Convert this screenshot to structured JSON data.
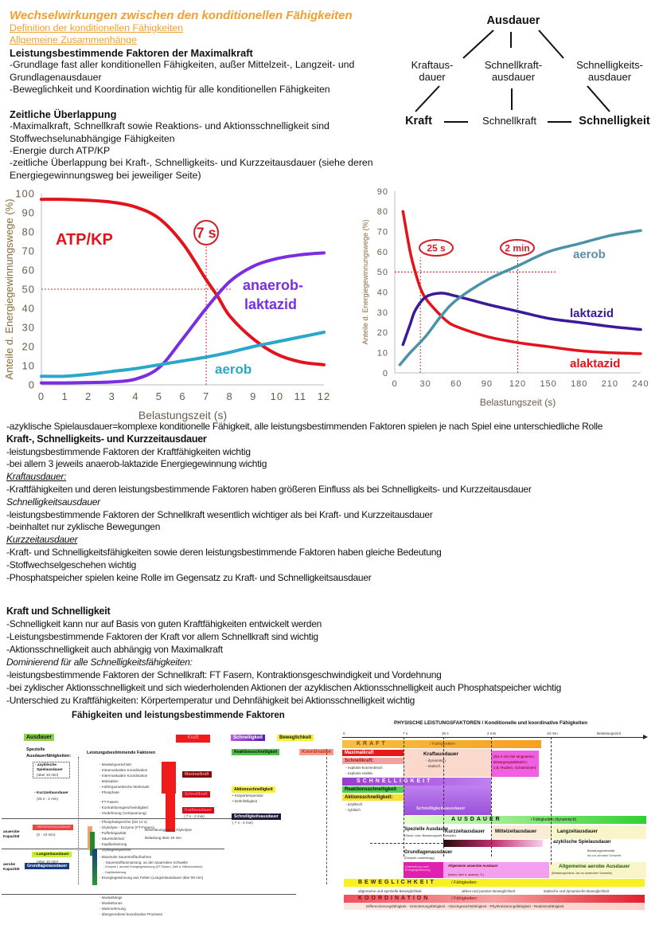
{
  "header": {
    "title": "Wechselwirkungen zwischen den konditionellen Fähigkeiten",
    "links": [
      "Definition der konditionellen Fähigkeiten",
      "Allgemeine Zusammenhänge"
    ]
  },
  "maximalkraft": {
    "heading": "Leistungsbestimmende Faktoren der Maximalkraft",
    "lines": [
      "-Grundlage fast aller konditionellen Fähigkeiten, außer Mittelzeit-, Langzeit- und Grundlagenausdauer",
      "-Beweglichkeit und Koordination wichtig für alle konditionellen Fähigkeiten"
    ]
  },
  "ueberlappung": {
    "heading": "Zeitliche Überlappung",
    "lines": [
      "-Maximalkraft, Schnellkraft sowie Reaktions- und Aktionsschnelligkeit sind Stoffwechselunabhängige Fähigkeiten",
      "-Energie durch ATP/KP",
      "-zeitliche Überlappung bei Kraft-, Schnelligkeits- und Kurzzeitausdauer (siehe deren Energiegewinnungsweg bei jeweiliger Seite)"
    ]
  },
  "triangle": {
    "top": "Ausdauer",
    "mid": [
      "Kraftaus-\ndauer",
      "Schnellkraft-\nausdauer",
      "Schnelligkeits-\nausdauer"
    ],
    "bottom": [
      "Kraft",
      "Schnellkraft",
      "Schnelligkeit"
    ]
  },
  "chart_data": [
    {
      "type": "line",
      "xlabel": "Belastungszeit (s)",
      "ylabel": "Anteile d. Energiegewinnungswege (%)",
      "xlim": [
        0,
        12
      ],
      "ylim": [
        0,
        100
      ],
      "xticks": [
        0,
        1,
        2,
        3,
        4,
        5,
        6,
        7,
        8,
        9,
        10,
        11,
        12
      ],
      "yticks": [
        0,
        10,
        20,
        30,
        40,
        50,
        60,
        70,
        80,
        90,
        100
      ],
      "grid": false,
      "series": [
        {
          "name": "ATP/KP",
          "color": "#e3131b",
          "x": [
            0,
            1,
            2,
            3,
            4,
            5,
            6,
            7,
            7.5,
            8,
            9,
            10,
            11,
            12
          ],
          "y": [
            97,
            97,
            96.5,
            95.5,
            93,
            87,
            74,
            55,
            46,
            36,
            24,
            16,
            12,
            10.5
          ]
        },
        {
          "name": "anaerob-laktazid",
          "color": "#7a2ee0",
          "x": [
            0,
            1,
            2,
            3,
            4,
            5,
            6,
            7,
            8,
            9,
            10,
            11,
            12
          ],
          "y": [
            1,
            1,
            1.2,
            1.5,
            3,
            9,
            24,
            40,
            54,
            62,
            66,
            68,
            69
          ]
        },
        {
          "name": "aerob",
          "color": "#2aa7c9",
          "x": [
            0,
            1,
            2,
            3,
            4,
            5,
            6,
            7,
            8,
            9,
            10,
            11,
            12
          ],
          "y": [
            4.5,
            4.5,
            5.5,
            7,
            8.5,
            10.5,
            12.5,
            14.5,
            17,
            20,
            22.5,
            25,
            27.5
          ]
        }
      ],
      "series_labels": [
        "ATP/KP",
        "anaerob-",
        "laktazid",
        "aerob"
      ],
      "annotations": [
        {
          "label": "7 s",
          "x": 7,
          "y_line": 50
        }
      ]
    },
    {
      "type": "line",
      "xlabel": "Belastungszeit (s)",
      "ylabel": "Anteile d. Energiegewinnungswege (%)",
      "xlim": [
        0,
        240
      ],
      "ylim": [
        0,
        90
      ],
      "xticks": [
        0,
        30,
        60,
        90,
        120,
        150,
        180,
        210,
        240
      ],
      "yticks": [
        0,
        10,
        20,
        30,
        40,
        50,
        60,
        70,
        80,
        90
      ],
      "grid": false,
      "series": [
        {
          "name": "alaktazid",
          "color": "#e3131b",
          "x": [
            8,
            15,
            20,
            25,
            30,
            40,
            50,
            60,
            90,
            120,
            150,
            180,
            210,
            240
          ],
          "y": [
            80,
            60,
            50,
            42,
            37,
            31,
            26,
            23,
            18,
            15,
            13,
            11,
            10,
            9.5
          ]
        },
        {
          "name": "laktazid",
          "color": "#3a1a9a",
          "x": [
            8,
            15,
            20,
            30,
            45,
            60,
            90,
            120,
            150,
            180,
            210,
            240
          ],
          "y": [
            14,
            24,
            31,
            37.5,
            39.5,
            38,
            34,
            30.5,
            27,
            25,
            23,
            21.5
          ]
        },
        {
          "name": "aerob",
          "color": "#4a92a8",
          "x": [
            5,
            15,
            30,
            45,
            60,
            90,
            120,
            150,
            180,
            210,
            240
          ],
          "y": [
            4,
            10,
            18,
            28,
            36,
            46,
            53,
            60,
            64,
            68,
            70.5
          ]
        }
      ],
      "annotations": [
        {
          "label": "25 s",
          "x": 25,
          "y_line": 50
        },
        {
          "label": "2 min",
          "x": 120,
          "y_line": 50
        }
      ]
    }
  ],
  "middle": {
    "intro": "-azyklische Spielausdauer=komplexe konditionelle Fähigkeit, alle leistungsbestimmenden Faktoren spielen je nach Spiel eine unterschiedliche Rolle",
    "heading": "Kraft-, Schnelligkeits- und Kurzzeitausdauer",
    "l1": "-leistungsbestimmende Faktoren der Kraftfähigkeiten wichtig",
    "l2": "-bei allem 3 jeweils anaerob-laktazide Energiegewinnung wichtig",
    "kraft_h": "Kraftausdauer:",
    "kraft_1": "-Kraftfähigkeiten und deren leistungsbestimmende Faktoren haben größeren Einfluss als bei Schnelligkeits- und Kurzzeitausdauer",
    "schn_h": "Schnelligkeitsausdauer",
    "schn_1": "-leistungsbestimmende Faktoren der Schnellkraft wesentlich wichtiger als bei Kraft- und Kurzzeitausdauer",
    "schn_2": "-beinhaltet nur zyklische Bewegungen",
    "kurz_h": "Kurzzeitausdauer",
    "kurz_1": "-Kraft- und Schnelligkeitsfähigkeiten sowie deren leistungsbestimmende Faktoren haben gleiche Bedeutung",
    "kurz_2": "-Stoffwechselgeschehen wichtig",
    "kurz_3": "-Phosphatspeicher spielen keine Rolle im Gegensatz zu Kraft- und Schnelligkeitsausdauer"
  },
  "kraft_schnell": {
    "heading": "Kraft und Schnelligkeit",
    "l1": "-Schnelligkeit kann nur auf Basis von guten Kraftfähigkeiten entwickelt werden",
    "l2": "-Leistungsbestimmende Faktoren der Kraft vor allem Schnellkraft sind wichtig",
    "l3": "-Aktionsschnelligkeit auch abhängig von Maximalkraft",
    "sub": "Dominierend für alle Schnelligkeitsfähigkeiten:",
    "l4": "-leistungsbestimmende Faktoren der Schnellkraft: FT Fasern, Kontraktionsgeschwindigkeit und Vordehnung",
    "l5": "-bei zyklischer Aktionsschnelligkeit und sich wiederholenden Aktionen der azyklischen Aktionsschnelligkeit auch Phosphatspeicher wichtig",
    "l6": "-Unterschied zu Kraftfähigkeiten: Körpertemperatur und Dehnfähigkeit bei Aktionsschnelligkeit wichtig"
  },
  "fig_left": {
    "title": "Fähigkeiten und leistungsbestimmende Faktoren",
    "ausdauer": "Ausdauer",
    "kraft": "Kraft",
    "schnelligkeit": "Schnelligkeit",
    "beweglichkeit": "Beweglichkeit",
    "koordination": "Koordination",
    "spezielle": "Spezielle",
    "ausdauerfaehigkeiten": "Ausdauerfähigkeiten:",
    "faktoren_h": "Leistungsbestimmende Faktoren",
    "azyk": "- azyklische",
    "spiel": "Spielausdauer",
    "spiel_t": "(über 10 min)",
    "kurz": "- Kurzzeitausdauer",
    "kurz_t": "(25 s - 2 min)",
    "mittel": "- Mittelzeitausdauer",
    "mittel_t": "(2 - 10 min)",
    "lang": "- Langzeitausdauer",
    "lang_t": "(über 10 min)",
    "grundlagen": "Grundlagenausdauer",
    "anaerob": "anaerobe",
    "aerob": "aerobe",
    "kapazitaet": "Kapazität",
    "factors": [
      "- Muskelquerschnitt",
      "- Intramuskuläre Koordination",
      "- Intermuskuläre Koordination",
      "- Motivation",
      "- Anthropometrische Merkmale",
      "- Phosphate",
      "- FT-Fasern",
      "- Kontraktionsgeschwindigkeit",
      "- Vordehnung (Vorspannung)",
      "- Phosphatspeicher (bis 12 s)",
      "- Glykolyse - Enzyme (FT-Fasern)",
      "- Pufferkapazität",
      "- Säuretoleranz",
      "- Kapillarisierung",
      "- Glykogenspeicher",
      "- Maximale Sauerstoffaufnahme",
      "- Sauerstoffausnutzung: an der anaeroben Schwelle",
      "- Enzyme f. aerobe Energiegewinnung (ST-Fasern, Zahl d. Mitochondrien)",
      "- Kapillarisierung",
      "- Energiegewinnung aus Fetten (Langzeitausdauer über 90 min)",
      "- Muskellänge",
      "- Muskeltonus",
      "- Wahrnehmung",
      "- übergeordnete koordinative Prozesse"
    ],
    "maximalkraft": "Maximalkraft",
    "schnellkraft": "Schnellkraft",
    "kraftausdauer": "Kraftausdauer",
    "kraftausdauer_t": "( 7 s - 2 min)",
    "reaktion": "Reaktionsschnelligkeit",
    "aktion": "Aktionsschnelligkeit",
    "aktion_1": "• Körpertemperatur",
    "aktion_2": "• Dehnfähigkeit",
    "schnausd": "Schnelligkeitsausdauer",
    "schnausd_t": "( 7 s - 2 min)",
    "glyk_1": "Beschleunigung d. Glykolyse",
    "glyk_2": "Belastung über 40 min"
  },
  "fig_right": {
    "title": "PHYSISCHE LEISTUNGSFAKTOREN / Konditionelle und koordinative Fähigkeiten",
    "axis": [
      "0",
      "7 s",
      "25 s",
      "2 min",
      "10 min",
      "Belastungszeit"
    ],
    "kraft": "KRAFT",
    "faehigkeiten": "/ Fähigkeiten:",
    "maximalkraft": "Maximalkraft",
    "schnellkraft": "Schnellkraft:",
    "explosiv_1": "- explosiv-konzentrisch",
    "explosiv_2": "- explosiv-reaktiv",
    "kraftausdauer": "Kraftausdauer",
    "dyn": "- dynamisch",
    "stat": "- statisch",
    "kraft_note": [
      "(bis 6 min bei langsamen",
      "Bewegungsabläufen,",
      "z.B. Rudern, Schwimmen)"
    ],
    "schnelligkeit": "SCHNELLIGKEIT",
    "reaktion": "Reaktionsschnelligkeit",
    "aktion": "Aktionsschnelligkeit:",
    "azyk": "- azyklisch",
    "zyk": "- zyklisch",
    "schnausd": "Schnelligkeitsausdauer",
    "ausdauer": "AUSDAUER",
    "ausdauer_f": "/ Fähigkeiten (dynamisch)",
    "spezielle": "Spezielle Ausdauer",
    "spezielle_t": "(Strukt. nach Belastungszeit, Disziplin)",
    "kurz": "Kurzzeitausdauer",
    "mittel": "Mittelzeitausdauer",
    "lang": "Langzeitausdauer",
    "spiel": "azyklische Spielausdauer",
    "grund": "Grundlagenausdauer",
    "grund_t": "(Disziplin-unabhängig)",
    "intens": "Belastungsintensität",
    "intens_2": "bis zur aeroben Schwelle",
    "unterteilung": "Unterteilung nach Energiegewinnung",
    "anaerobe": "Allgemeine anaerobe Ausdauer",
    "anaerobe_t": "(Intens. über d. anaerob. S.)",
    "aerobe": "Allgemeine aerobe Ausdauer",
    "aerobe_t": "(Belastungsintens. bis zur anaeroben Schwelle)",
    "beweglichkeit": "BEWEGLICHKEIT",
    "bew": [
      "allgemeine und spezielle Beweglichkeit",
      "aktive und passive Beweglichkeit",
      "statische und dynamische Beweglichkeit"
    ],
    "koordination": "KOORDINATION",
    "koord": "Differenzierungsfähigkeit - Orientierungsfähigkeit - Gleichgewichtsfähigkeit - Rhythmisierungsfähigkeit - Reaktionsfähigkeit"
  }
}
